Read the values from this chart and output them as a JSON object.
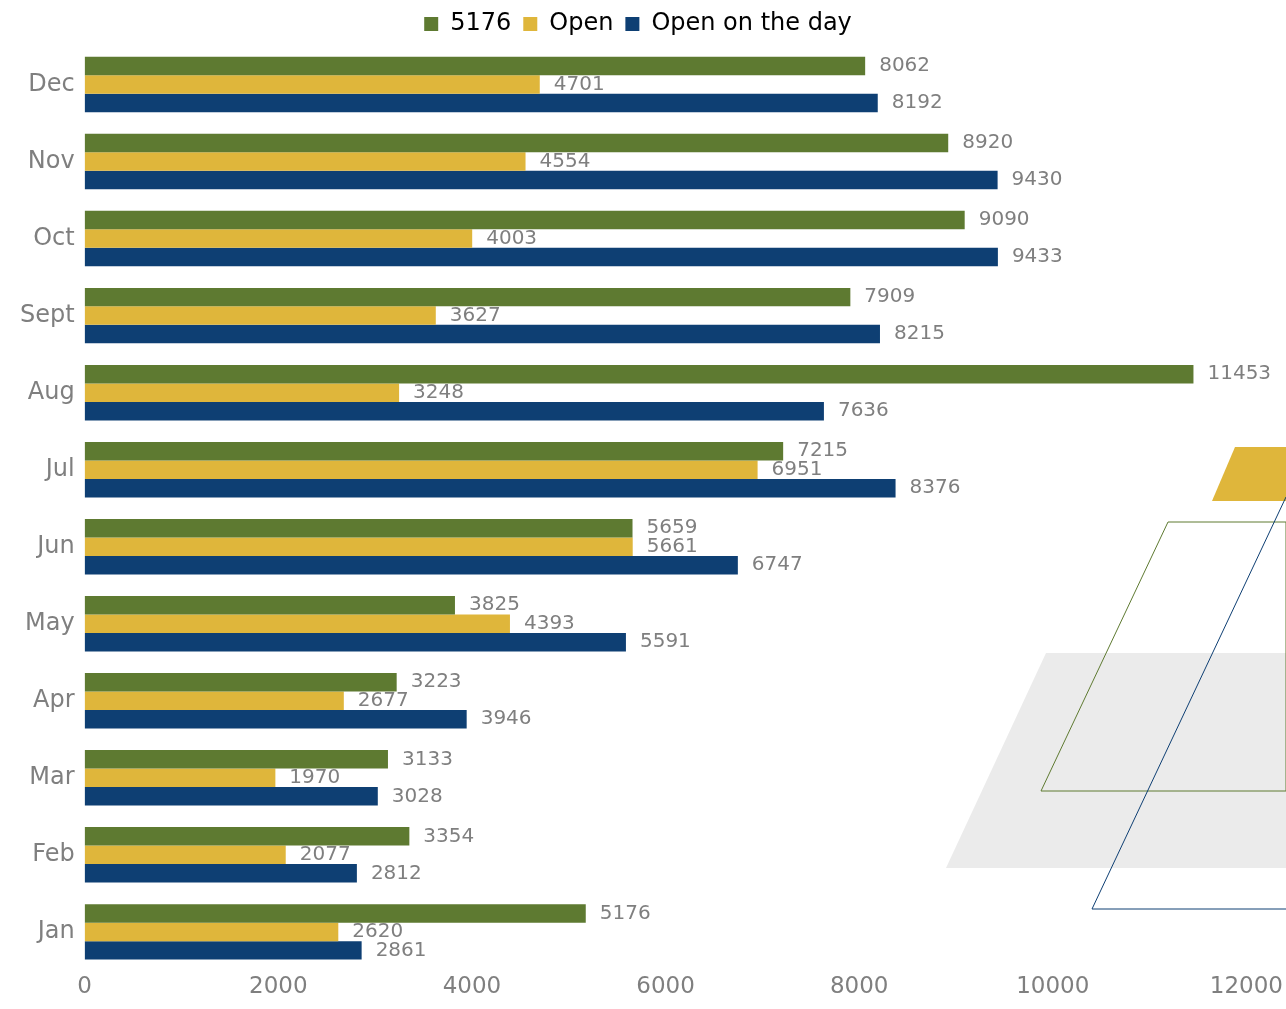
{
  "chart_data": {
    "type": "bar",
    "orientation": "horizontal",
    "categories": [
      "Dec",
      "Nov",
      "Oct",
      "Sept",
      "Aug",
      "Jul",
      "Jun",
      "May",
      "Apr",
      "Mar",
      "Feb",
      "Jan"
    ],
    "series": [
      {
        "name": "5176",
        "color": "#5e7a31",
        "values": [
          8062,
          8920,
          9090,
          7909,
          11453,
          7215,
          5659,
          3825,
          3223,
          3133,
          3354,
          5176
        ]
      },
      {
        "name": "Open",
        "color": "#dfb63b",
        "values": [
          4701,
          4554,
          4003,
          3627,
          3248,
          6951,
          5661,
          4393,
          2677,
          1970,
          2077,
          2620
        ]
      },
      {
        "name": "Open on the day",
        "color": "#0e3f73",
        "values": [
          8192,
          9430,
          9433,
          8215,
          7636,
          8376,
          6747,
          5591,
          3946,
          3028,
          2812,
          2861
        ]
      }
    ],
    "xlim": [
      0,
      12000
    ],
    "xticks": [
      0,
      2000,
      4000,
      6000,
      8000,
      10000,
      12000
    ],
    "grid": false,
    "legend": "top",
    "data_labels": true
  }
}
